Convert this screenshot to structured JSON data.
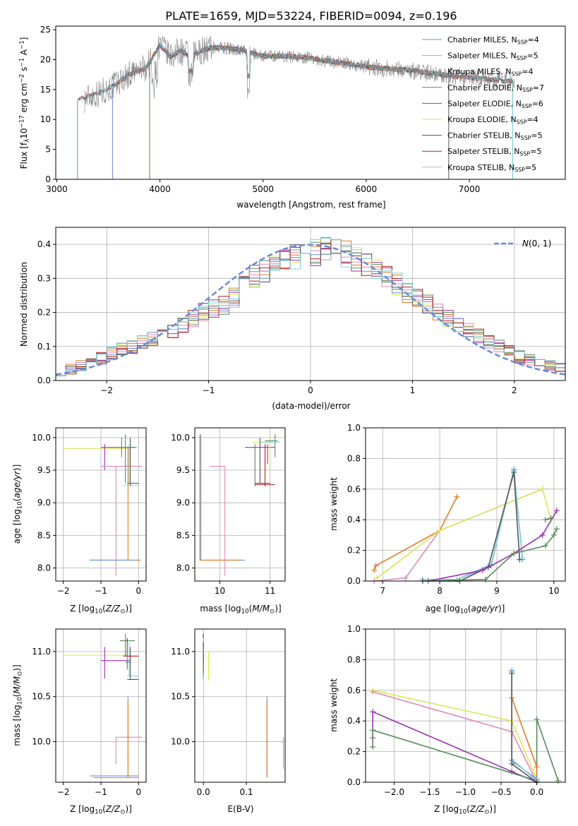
{
  "title": "PLATE=1659, MJD=53224, FIBERID=0094, z=0.196",
  "colors": {
    "chabrier_miles": "#6f8fd6",
    "salpeter_miles": "#e088b8",
    "kroupa_miles": "#e07b2a",
    "chabrier_elodie": "#5a8a5e",
    "salpeter_elodie": "#9b2fb0",
    "kroupa_elodie": "#d9e85a",
    "chabrier_stelib": "#555555",
    "salpeter_stelib": "#b22222",
    "kroupa_stelib": "#7fd3d8",
    "data": "#808080",
    "normal": "#6a8ad4",
    "grid": "#b0b0b0"
  },
  "chart_data": [
    {
      "type": "line",
      "id": "spectrum",
      "title": "PLATE=1659, MJD=53224, FIBERID=0094, z=0.196",
      "xlabel": "wavelength [Angstrom, rest frame]",
      "ylabel": "Flux [f_λ 10^-17 erg cm^-2 s^-1 A^-1]",
      "xlim": [
        2990,
        7930
      ],
      "ylim": [
        0,
        25.6
      ],
      "xticks": [
        3000,
        4000,
        5000,
        6000,
        7000
      ],
      "yticks": [
        0,
        5,
        10,
        15,
        20,
        25
      ],
      "grid": false,
      "legend_position": "upper right",
      "series": [
        {
          "name": "Chabrier MILES, N_SSP=4",
          "color_key": "chabrier_miles"
        },
        {
          "name": "Salpeter MILES, N_SSP=5",
          "color_key": "salpeter_miles"
        },
        {
          "name": "Kroupa MILES, N_SSP=4",
          "color_key": "kroupa_miles"
        },
        {
          "name": "Chabrier ELODIE, N_SSP=7",
          "color_key": "chabrier_elodie"
        },
        {
          "name": "Salpeter ELODIE, N_SSP=6",
          "color_key": "salpeter_elodie"
        },
        {
          "name": "Kroupa ELODIE, N_SSP=4",
          "color_key": "kroupa_elodie"
        },
        {
          "name": "Chabrier STELIB, N_SSP=5",
          "color_key": "chabrier_stelib"
        },
        {
          "name": "Salpeter STELIB, N_SSP=5",
          "color_key": "salpeter_stelib"
        },
        {
          "name": "Kroupa STELIB, N_SSP=5",
          "color_key": "kroupa_stelib"
        }
      ],
      "model_coverage": {
        "stelib": [
          3200,
          7420
        ],
        "miles": [
          3540,
          7420
        ],
        "elodie": [
          3900,
          6800
        ]
      },
      "continuum": {
        "x": [
          3270,
          3300,
          3400,
          3540,
          3700,
          3850,
          3900,
          4000,
          4100,
          4200,
          4300,
          4400,
          4500,
          4600,
          4700,
          4800,
          4900,
          5000,
          5200,
          5400,
          5600,
          5800,
          6000,
          6200,
          6400,
          6600,
          6800,
          7000,
          7200,
          7400
        ],
        "y": [
          13.5,
          13.8,
          14.3,
          15.5,
          17.5,
          18.5,
          19.5,
          22.5,
          20.5,
          21.5,
          20.5,
          21.5,
          22.0,
          22.0,
          21.8,
          21.6,
          21.0,
          20.6,
          20.6,
          20.4,
          19.8,
          19.4,
          18.8,
          18.5,
          18.3,
          17.8,
          17.3,
          17.0,
          16.7,
          16.4
        ]
      }
    },
    {
      "type": "histogram",
      "id": "residuals",
      "xlabel": "(data-model)/error",
      "ylabel": "Normed distribution",
      "xlim": [
        -2.5,
        2.5
      ],
      "ylim": [
        0,
        0.45
      ],
      "xticks": [
        -2,
        -1,
        0,
        1,
        2
      ],
      "yticks": [
        0.0,
        0.1,
        0.2,
        0.3,
        0.4
      ],
      "grid": true,
      "legend_position": "upper right",
      "legend": "N(0,1)",
      "bins": [
        -2.5,
        2.5,
        50
      ],
      "series_profile": [
        0.03,
        0.035,
        0.045,
        0.055,
        0.065,
        0.08,
        0.09,
        0.1,
        0.11,
        0.12,
        0.13,
        0.145,
        0.16,
        0.18,
        0.2,
        0.21,
        0.22,
        0.245,
        0.28,
        0.305,
        0.32,
        0.335,
        0.35,
        0.36,
        0.37,
        0.375,
        0.38,
        0.375,
        0.37,
        0.355,
        0.34,
        0.33,
        0.31,
        0.285,
        0.26,
        0.245,
        0.225,
        0.2,
        0.18,
        0.165,
        0.145,
        0.13,
        0.115,
        0.1,
        0.085,
        0.07,
        0.06,
        0.055,
        0.045,
        0.04
      ]
    },
    {
      "type": "scatter",
      "id": "z_age",
      "xlabel": "Z [log10(Z/Z☉)]",
      "ylabel": "age  [log10(age/yr)]",
      "xlim": [
        -2.2,
        0.2
      ],
      "ylim": [
        7.8,
        10.15
      ],
      "xticks": [
        -2,
        -1,
        0
      ],
      "yticks": [
        8.0,
        8.5,
        9.0,
        9.5,
        10.0
      ],
      "grid": true
    },
    {
      "type": "scatter",
      "id": "mass_age",
      "xlabel": "mass [log10(M/M☉)]",
      "xlim": [
        9.5,
        11.3
      ],
      "ylim": [
        7.8,
        10.15
      ],
      "xticks": [
        10,
        11
      ],
      "yticks": [
        8.0,
        8.5,
        9.0,
        9.5,
        10.0
      ],
      "grid": true
    },
    {
      "type": "line",
      "id": "age_weight",
      "xlabel": "age  [log10(age/yr)]",
      "ylabel": "mass weight",
      "xlim": [
        6.7,
        10.2
      ],
      "ylim": [
        0,
        1.0
      ],
      "xticks": [
        7,
        8,
        9,
        10
      ],
      "yticks": [
        0.0,
        0.2,
        0.4,
        0.6,
        0.8,
        1.0
      ],
      "grid": true,
      "series": [
        {
          "color_key": "kroupa_miles",
          "x": [
            6.85,
            6.88,
            8.0,
            8.3
          ],
          "y": [
            0.07,
            0.1,
            0.33,
            0.55
          ]
        },
        {
          "color_key": "salpeter_miles",
          "x": [
            6.85,
            7.4,
            8.0,
            9.8
          ],
          "y": [
            0.0,
            0.02,
            0.33,
            0.6
          ]
        },
        {
          "color_key": "kroupa_elodie",
          "x": [
            6.9,
            8.0,
            9.8,
            9.95
          ],
          "y": [
            0.02,
            0.33,
            0.6,
            0.4
          ]
        },
        {
          "color_key": "chabrier_miles",
          "x": [
            7.7,
            8.3,
            8.9,
            9.3,
            9.45
          ],
          "y": [
            0.01,
            0.01,
            0.1,
            0.73,
            0.14
          ]
        },
        {
          "color_key": "kroupa_stelib",
          "x": [
            7.7,
            8.3,
            8.9,
            9.3,
            9.45
          ],
          "y": [
            0.01,
            0.01,
            0.11,
            0.72,
            0.15
          ]
        },
        {
          "color_key": "chabrier_stelib",
          "x": [
            7.7,
            8.35,
            8.85,
            9.3,
            9.4
          ],
          "y": [
            0.0,
            0.0,
            0.09,
            0.71,
            0.14
          ]
        },
        {
          "color_key": "salpeter_elodie",
          "x": [
            7.8,
            8.75,
            9.3,
            9.8,
            10.05
          ],
          "y": [
            0.0,
            0.07,
            0.18,
            0.3,
            0.46
          ]
        },
        {
          "color_key": "chabrier_elodie",
          "x": [
            7.8,
            8.8,
            9.3,
            9.85,
            10.0,
            10.05
          ],
          "y": [
            0.0,
            0.01,
            0.18,
            0.23,
            0.3,
            0.34
          ]
        },
        {
          "color_key": "chabrier_elodie",
          "x": [
            9.85,
            9.95
          ],
          "y": [
            0.4,
            0.41
          ]
        }
      ]
    },
    {
      "type": "scatter",
      "id": "z_mass",
      "xlabel": "Z [log10(Z/Z☉)]",
      "ylabel": "mass [log10(M/M☉)]",
      "xlim": [
        -2.2,
        0.2
      ],
      "ylim": [
        9.55,
        11.25
      ],
      "xticks": [
        -2,
        -1,
        0
      ],
      "yticks": [
        10.0,
        10.5,
        11.0
      ],
      "grid": true
    },
    {
      "type": "scatter",
      "id": "ebv_mass",
      "xlabel": "E(B-V)",
      "xlim": [
        -0.02,
        0.19
      ],
      "ylim": [
        9.55,
        11.25
      ],
      "xticks": [
        0.0,
        0.1
      ],
      "yticks": [
        10.0,
        10.5,
        11.0
      ],
      "grid": true
    },
    {
      "type": "line",
      "id": "z_weight",
      "xlabel": "Z [log10(Z/Z☉)]",
      "ylabel": "mass weight",
      "xlim": [
        -2.4,
        0.4
      ],
      "ylim": [
        0,
        1.0
      ],
      "xticks": [
        -2.0,
        -1.5,
        -1.0,
        -0.5,
        0.0
      ],
      "yticks": [
        0.0,
        0.2,
        0.4,
        0.6,
        0.8,
        1.0
      ],
      "grid": true,
      "series": [
        {
          "color_key": "kroupa_elodie",
          "x": [
            -2.3,
            -0.35,
            0.0
          ],
          "y": [
            0.6,
            0.4,
            0.02
          ]
        },
        {
          "color_key": "salpeter_miles",
          "x": [
            -2.3,
            -0.35,
            0.0
          ],
          "y": [
            0.59,
            0.33,
            0.0
          ]
        },
        {
          "color_key": "salpeter_elodie",
          "x": [
            -2.3,
            -2.3,
            -0.35,
            0.0
          ],
          "y": [
            0.29,
            0.46,
            0.07,
            0.0
          ]
        },
        {
          "color_key": "chabrier_elodie",
          "x": [
            -2.3,
            -2.3,
            0.0,
            0.0,
            0.3
          ],
          "y": [
            0.23,
            0.34,
            0.01,
            0.41,
            0.01
          ]
        },
        {
          "color_key": "kroupa_miles",
          "x": [
            -0.35,
            0.0,
            0.0
          ],
          "y": [
            0.55,
            0.1,
            0.01
          ]
        },
        {
          "color_key": "chabrier_miles",
          "x": [
            -0.35,
            -0.35,
            0.0
          ],
          "y": [
            0.73,
            0.14,
            0.02
          ]
        },
        {
          "color_key": "kroupa_stelib",
          "x": [
            -0.35,
            -0.35,
            0.0
          ],
          "y": [
            0.72,
            0.15,
            0.01
          ]
        },
        {
          "color_key": "chabrier_stelib",
          "x": [
            -0.35,
            -0.35,
            0.0
          ],
          "y": [
            0.71,
            0.12,
            0.0
          ]
        }
      ]
    }
  ]
}
